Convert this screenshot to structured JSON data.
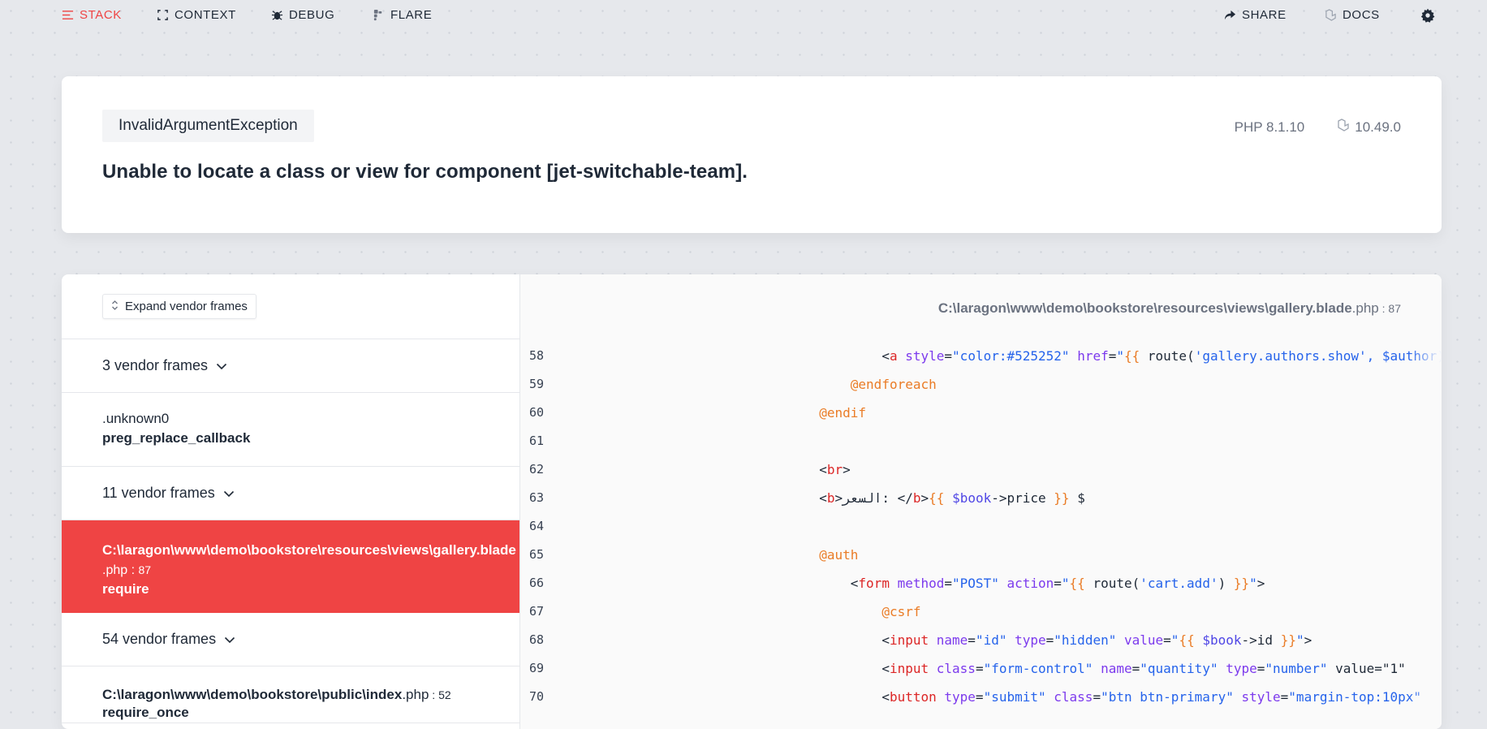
{
  "nav": {
    "stack": "STACK",
    "context": "CONTEXT",
    "debug": "DEBUG",
    "flare": "FLARE",
    "share": "SHARE",
    "docs": "DOCS"
  },
  "hero": {
    "exception": "InvalidArgumentException",
    "message": "Unable to locate a class or view for component [jet-switchable-team].",
    "php_version": "PHP 8.1.10",
    "laravel_version": "10.49.0"
  },
  "frames": {
    "expand_label": "Expand vendor frames",
    "vendor_1": "3 vendor frames",
    "unknown_file": ".unknown0",
    "unknown_fn": "preg_replace_callback",
    "vendor_2": "11 vendor frames",
    "selected_file": "C:\\laragon\\www\\demo\\bookstore\\resources\\views\\gallery.blade",
    "selected_ext": ".php",
    "selected_sep": " : ",
    "selected_line": "87",
    "selected_fn": "require",
    "vendor_3": "54 vendor frames",
    "last_file": "C:\\laragon\\www\\demo\\bookstore\\public\\index",
    "last_ext": ".php",
    "last_sep": " : ",
    "last_line": "52",
    "last_fn": "require_once"
  },
  "code": {
    "path": "C:\\laragon\\www\\demo\\bookstore\\resources\\views\\gallery.blade",
    "path_ext": ".php",
    "path_sep": " : ",
    "path_line": "87",
    "line_numbers": [
      "58",
      "59",
      "60",
      "61",
      "62",
      "63",
      "64",
      "65",
      "66",
      "67",
      "68",
      "69",
      "70"
    ]
  },
  "colors": {
    "accent": "#ef4444",
    "directive": "#ea7c26",
    "tag": "#dc2626",
    "attribute": "#7c3aed",
    "string": "#2563eb"
  },
  "icons": [
    "stack-icon",
    "context-icon",
    "debug-icon",
    "flare-icon",
    "share-icon",
    "docs-icon",
    "settings-icon",
    "laravel-icon",
    "chevron-down-icon",
    "expand-icon"
  ]
}
